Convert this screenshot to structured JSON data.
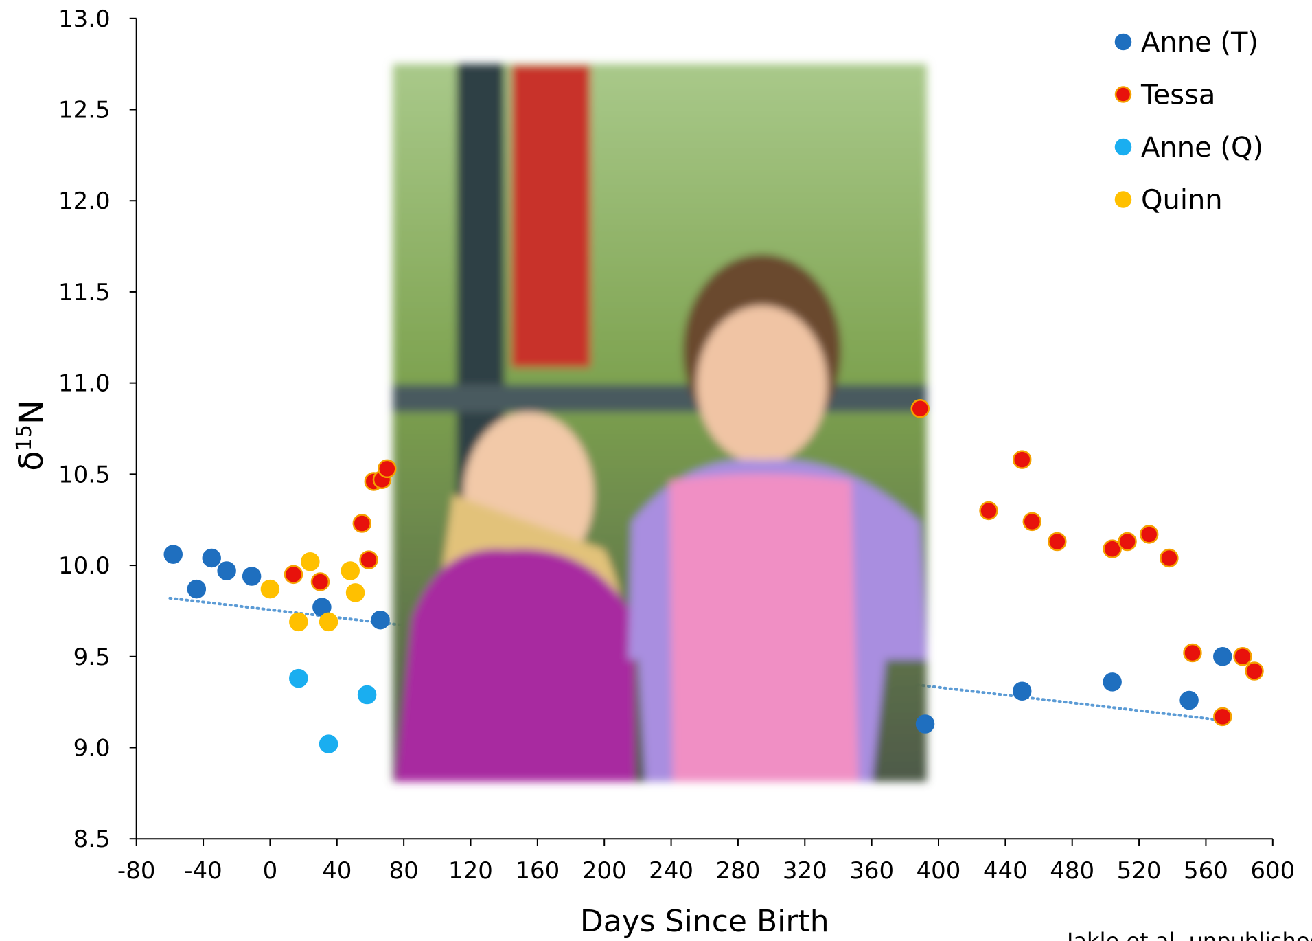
{
  "chart_data": {
    "type": "scatter",
    "xlabel": "Days Since Birth",
    "ylabel": [
      "δ",
      "15",
      "N"
    ],
    "xlim": [
      -80,
      600
    ],
    "xticks": [
      -80,
      -40,
      0,
      40,
      80,
      120,
      160,
      200,
      240,
      280,
      320,
      360,
      400,
      440,
      480,
      520,
      560,
      600
    ],
    "ylim": [
      8.5,
      13.0
    ],
    "yticks": [
      {
        "value": 8.5,
        "label": "8.5"
      },
      {
        "value": 9.0,
        "label": "9.0"
      },
      {
        "value": 9.5,
        "label": "9.5"
      },
      {
        "value": 10.0,
        "label": "10.0"
      },
      {
        "value": 10.5,
        "label": "10.5"
      },
      {
        "value": 11.0,
        "label": "11.0"
      },
      {
        "value": 11.5,
        "label": "11.5"
      },
      {
        "value": 12.0,
        "label": "12.0"
      },
      {
        "value": 12.5,
        "label": "12.5"
      },
      {
        "value": 13.0,
        "label": "13.0"
      }
    ],
    "legend": "upper right",
    "series": [
      {
        "name": "Anne (T)",
        "color": "#1f6fbf",
        "edgecolor": "#1f6fbf",
        "x": [
          -58,
          -44,
          -35,
          -26,
          -11,
          31,
          66,
          392,
          450,
          504,
          550,
          570
        ],
        "values": [
          10.06,
          9.87,
          10.04,
          9.97,
          9.94,
          9.77,
          9.7,
          9.13,
          9.31,
          9.36,
          9.26,
          9.5
        ]
      },
      {
        "name": "Tessa",
        "color": "#e8120c",
        "edgecolor": "#f5a000",
        "x": [
          14,
          30,
          59,
          55,
          62,
          67,
          70,
          389,
          430,
          450,
          456,
          471,
          504,
          513,
          526,
          538,
          552,
          570,
          582,
          589
        ],
        "values": [
          9.95,
          9.91,
          10.03,
          10.23,
          10.46,
          10.47,
          10.53,
          10.86,
          10.3,
          10.58,
          10.24,
          10.13,
          10.09,
          10.13,
          10.17,
          10.04,
          9.52,
          9.17,
          9.5,
          9.42
        ]
      },
      {
        "name": "Anne (Q)",
        "color": "#1aaef0",
        "edgecolor": "#1aaef0",
        "x": [
          17,
          35,
          58
        ],
        "values": [
          9.38,
          9.02,
          9.29
        ]
      },
      {
        "name": "Quinn",
        "color": "#ffc000",
        "edgecolor": "#ffc000",
        "x": [
          0,
          17,
          24,
          35,
          48,
          51
        ],
        "values": [
          9.87,
          9.69,
          10.02,
          9.69,
          9.97,
          9.85
        ]
      }
    ],
    "trendline": {
      "color": "#5b9bd5",
      "x": [
        -60,
        570
      ],
      "y": [
        9.82,
        9.15
      ]
    },
    "source": "Jakle et al. unpublished"
  }
}
